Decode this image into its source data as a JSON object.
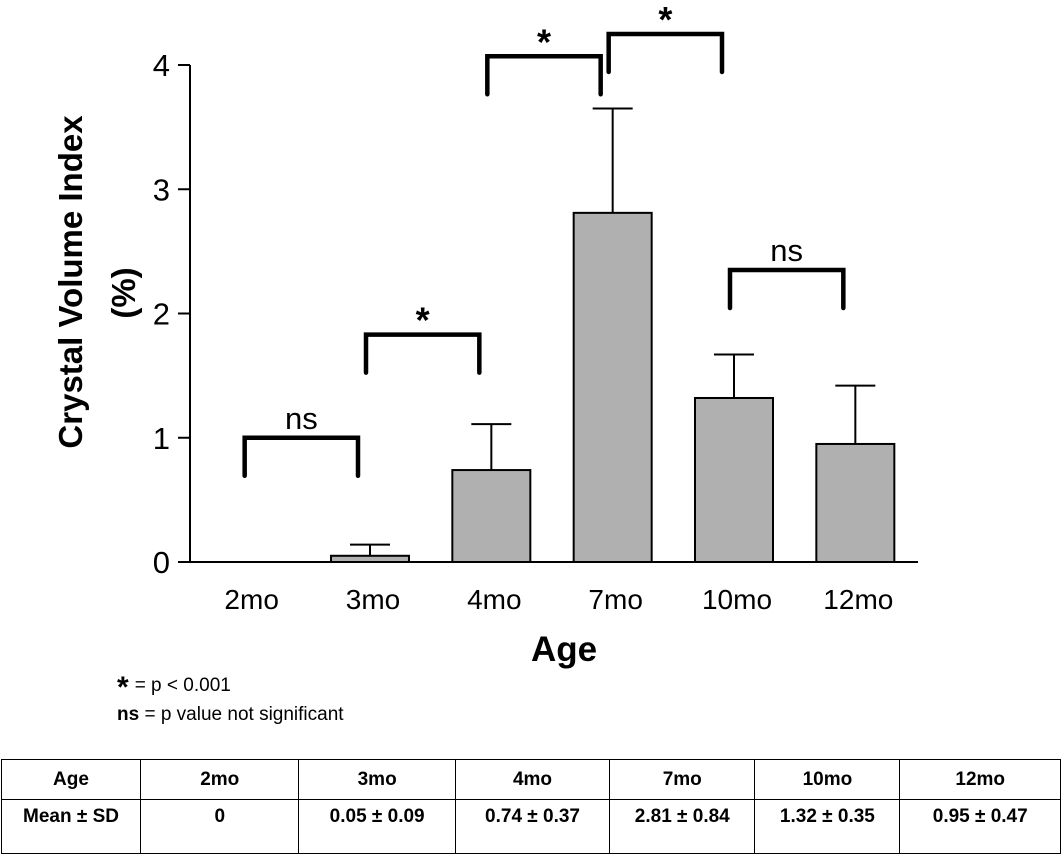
{
  "chart_data": {
    "type": "bar",
    "title": "",
    "xlabel": "Age",
    "ylabel": "Crystal Volume Index (%)",
    "ylabel_lines": [
      "Crystal Volume Index",
      "(%)"
    ],
    "categories": [
      "2mo",
      "3mo",
      "4mo",
      "7mo",
      "10mo",
      "12mo"
    ],
    "values": [
      0,
      0.05,
      0.74,
      2.81,
      1.32,
      0.95
    ],
    "error_sd": [
      0,
      0.09,
      0.37,
      0.84,
      0.35,
      0.47
    ],
    "ylim": [
      0,
      4
    ],
    "yticks": [
      0,
      1,
      2,
      3,
      4
    ],
    "grid": false,
    "bar_color": "#b0b0b0",
    "significance": [
      {
        "from": "2mo",
        "to": "3mo",
        "label": "ns",
        "level": 1.0
      },
      {
        "from": "3mo",
        "to": "4mo",
        "label": "*",
        "level": 1.83
      },
      {
        "from": "4mo",
        "to": "7mo",
        "label": "*",
        "level": 4.07
      },
      {
        "from": "7mo",
        "to": "10mo",
        "label": "*",
        "level": 4.25
      },
      {
        "from": "10mo",
        "to": "12mo",
        "label": "ns",
        "level": 2.35
      }
    ]
  },
  "legend": {
    "star_symbol": "*",
    "star_text": "= p < 0.001",
    "ns_symbol": "ns",
    "ns_text": " = p value not significant"
  },
  "table": {
    "header": [
      "Age",
      "2mo",
      "3mo",
      "4mo",
      "7mo",
      "10mo",
      "12mo"
    ],
    "row": [
      "Mean ± SD",
      "0",
      "0.05 ± 0.09",
      "0.74 ± 0.37",
      "2.81 ± 0.84",
      "1.32 ± 0.35",
      "0.95 ± 0.47"
    ]
  }
}
